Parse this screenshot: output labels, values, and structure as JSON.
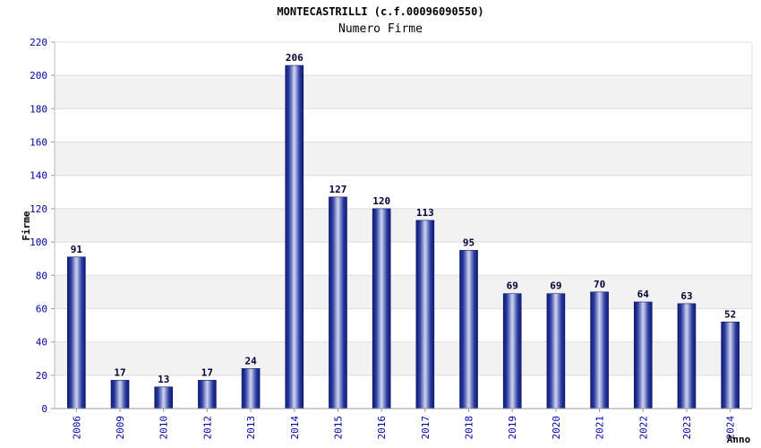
{
  "chart_data": {
    "type": "bar",
    "title": "MONTECASTRILLI (c.f.00096090550)",
    "subtitle": "Numero Firme",
    "xlabel": "Anno",
    "ylabel": "Firme",
    "categories": [
      "2006",
      "2009",
      "2010",
      "2012",
      "2013",
      "2014",
      "2015",
      "2016",
      "2017",
      "2018",
      "2019",
      "2020",
      "2021",
      "2022",
      "2023",
      "2024"
    ],
    "values": [
      91,
      17,
      13,
      17,
      24,
      206,
      127,
      120,
      113,
      95,
      69,
      69,
      70,
      64,
      63,
      52
    ],
    "ylim": [
      0,
      220
    ],
    "ytick_step": 20,
    "grid": true,
    "bar_color": "#1a237e",
    "bar_highlight": "#c5cae9",
    "band_color": "#f2f2f2",
    "tick_label_color": "#0000aa"
  }
}
